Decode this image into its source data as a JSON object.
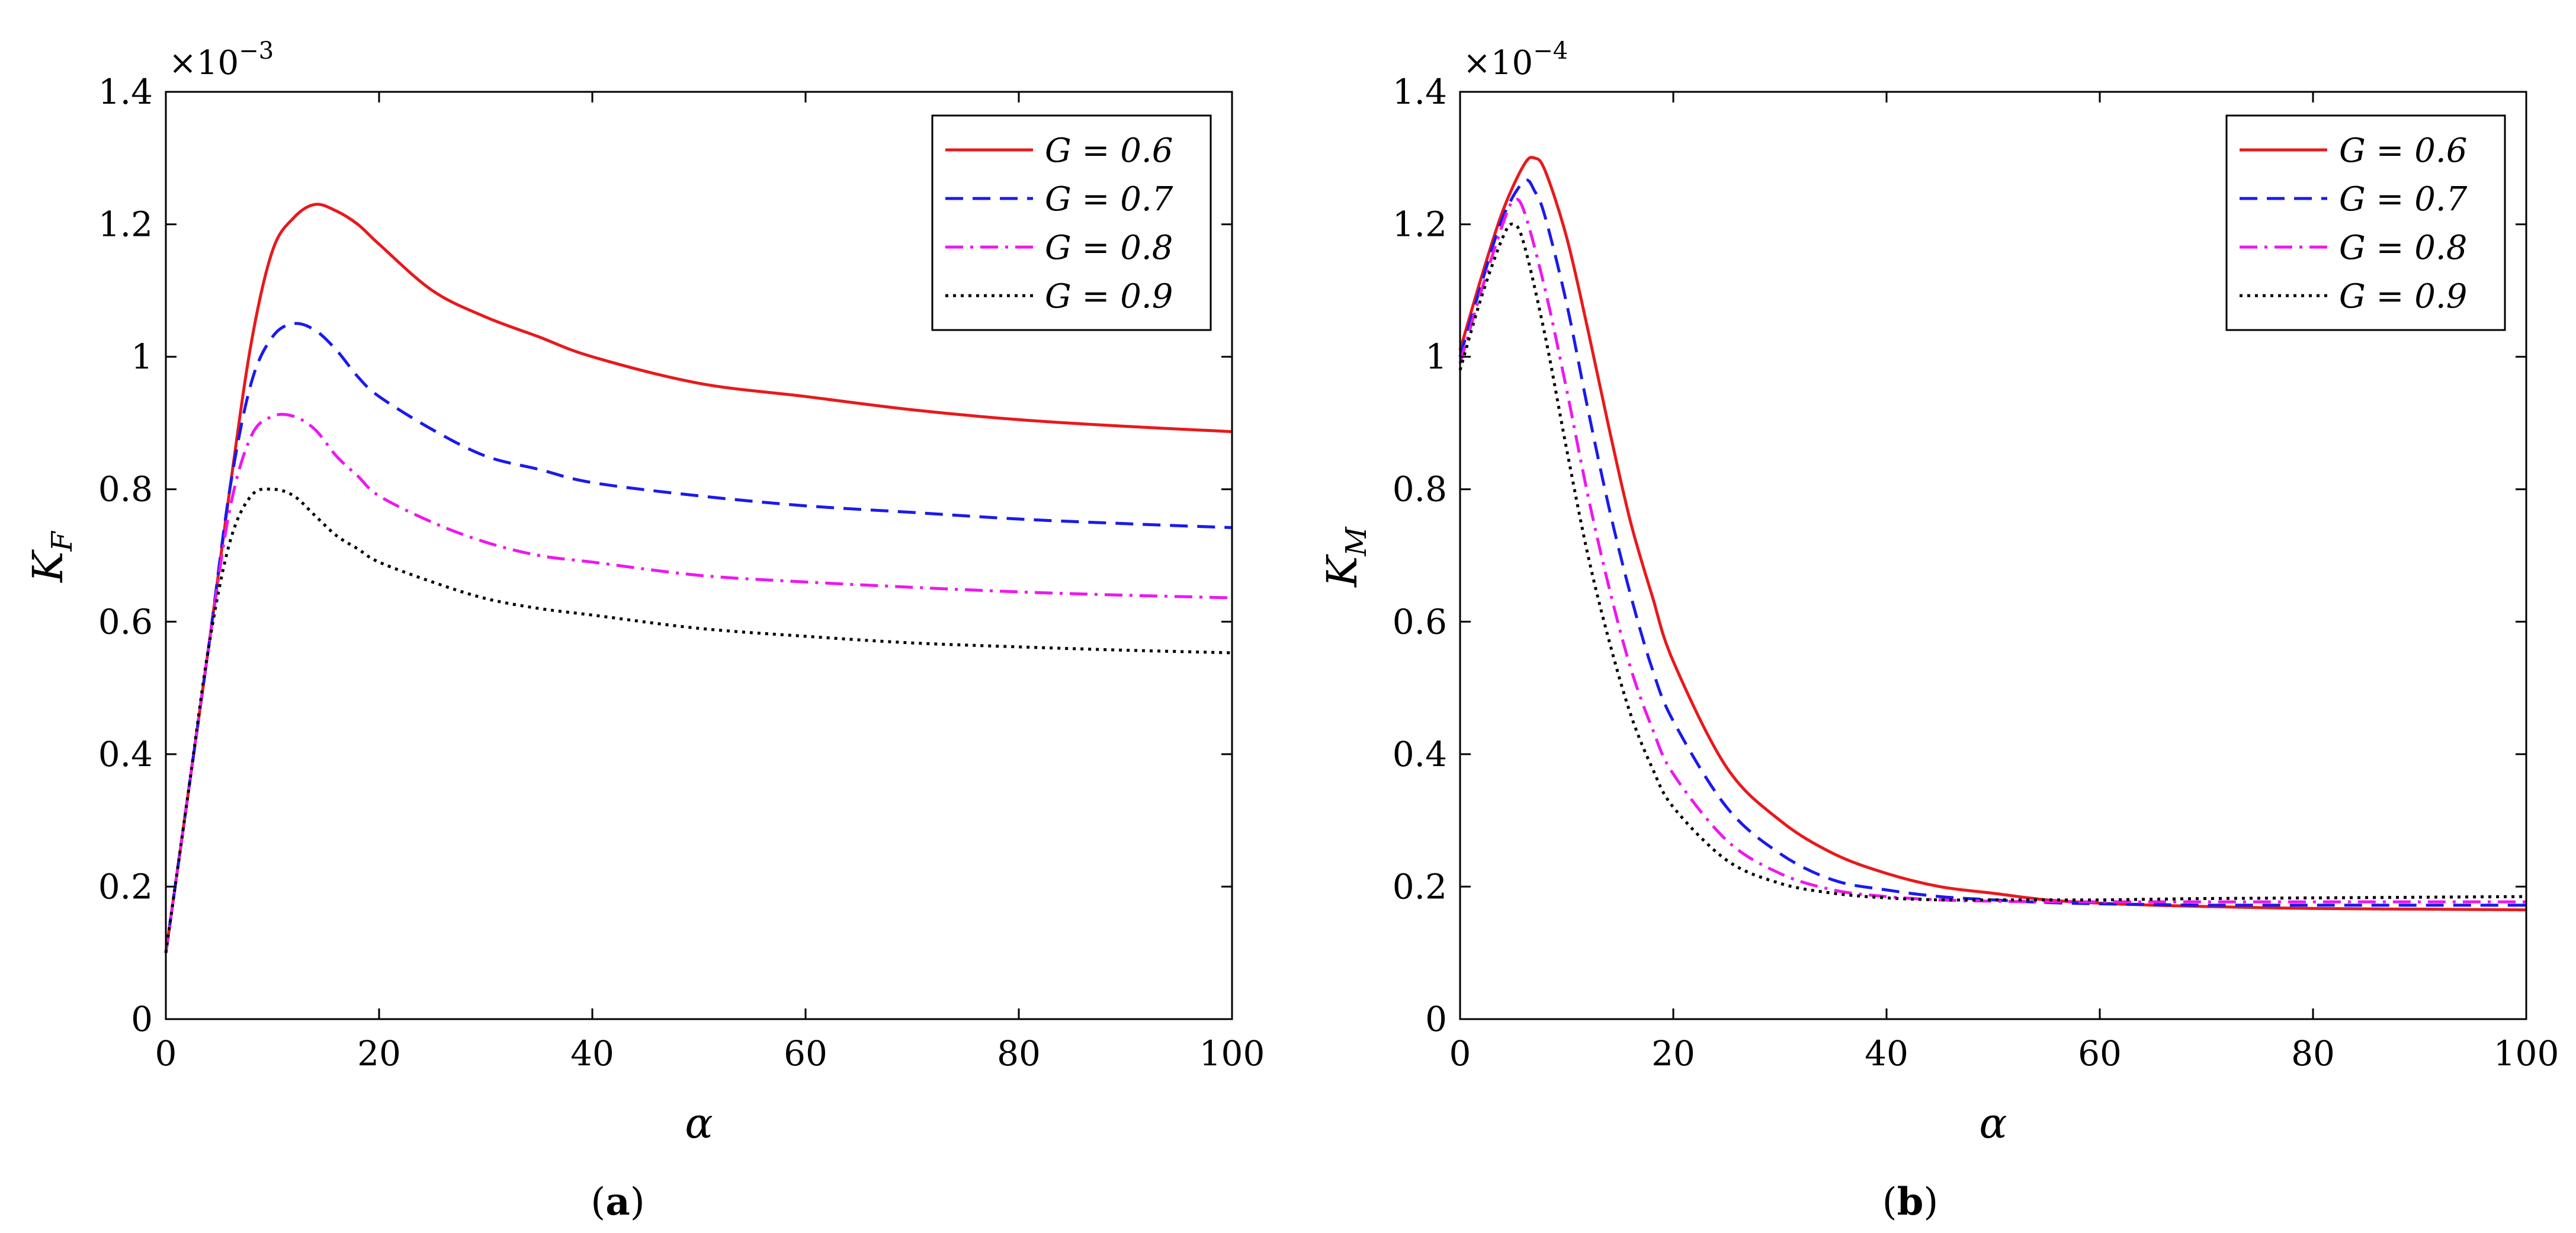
{
  "chart_data": [
    {
      "type": "line",
      "panel_label": "a",
      "caption_open": "(",
      "caption_close": ")",
      "xlabel": "α",
      "ylabel_main": "K",
      "ylabel_sub": "F",
      "exponent_base": "×10",
      "exponent_power": "−3",
      "xlim": [
        0,
        100
      ],
      "ylim": [
        0,
        1.4
      ],
      "xticks": [
        0,
        20,
        40,
        60,
        80,
        100
      ],
      "xtick_labels": [
        "0",
        "20",
        "40",
        "60",
        "80",
        "100"
      ],
      "yticks": [
        0,
        0.2,
        0.4,
        0.6,
        0.8,
        1,
        1.2,
        1.4
      ],
      "ytick_labels": [
        "0",
        "0.2",
        "0.4",
        "0.6",
        "0.8",
        "1",
        "1.2",
        "1.4"
      ],
      "legend_position": "top-right",
      "series": [
        {
          "name": "G = 0.6",
          "label": "G = 0.6",
          "color": "#e8191c",
          "dash": "solid",
          "x": [
            0,
            2,
            4,
            6,
            8,
            10,
            12,
            14,
            16,
            18,
            20,
            25,
            30,
            35,
            40,
            50,
            60,
            70,
            80,
            90,
            100
          ],
          "values": [
            0.1,
            0.33,
            0.56,
            0.8,
            1.02,
            1.16,
            1.21,
            1.23,
            1.22,
            1.2,
            1.17,
            1.1,
            1.06,
            1.03,
            1.0,
            0.96,
            0.94,
            0.92,
            0.905,
            0.895,
            0.887
          ]
        },
        {
          "name": "G = 0.7",
          "label": "G = 0.7",
          "color": "#1a1aee",
          "dash": "dashed",
          "x": [
            0,
            2,
            4,
            6,
            8,
            10,
            12,
            14,
            16,
            18,
            20,
            25,
            30,
            35,
            40,
            50,
            60,
            70,
            80,
            90,
            100
          ],
          "values": [
            0.1,
            0.33,
            0.56,
            0.8,
            0.96,
            1.03,
            1.05,
            1.04,
            1.01,
            0.97,
            0.94,
            0.89,
            0.85,
            0.83,
            0.81,
            0.79,
            0.775,
            0.765,
            0.755,
            0.748,
            0.742
          ]
        },
        {
          "name": "G = 0.8",
          "label": "G = 0.8",
          "color": "#ee17ee",
          "dash": "dashdot",
          "x": [
            0,
            2,
            4,
            6,
            8,
            10,
            12,
            14,
            16,
            18,
            20,
            25,
            30,
            35,
            40,
            50,
            60,
            70,
            80,
            90,
            100
          ],
          "values": [
            0.1,
            0.33,
            0.56,
            0.77,
            0.88,
            0.91,
            0.91,
            0.89,
            0.85,
            0.82,
            0.79,
            0.75,
            0.72,
            0.7,
            0.69,
            0.67,
            0.66,
            0.652,
            0.645,
            0.64,
            0.636
          ]
        },
        {
          "name": "G = 0.9",
          "label": "G = 0.9",
          "color": "#000000",
          "dash": "dotted",
          "x": [
            0,
            2,
            4,
            6,
            8,
            10,
            12,
            14,
            16,
            18,
            20,
            25,
            30,
            35,
            40,
            50,
            60,
            70,
            80,
            90,
            100
          ],
          "values": [
            0.1,
            0.33,
            0.56,
            0.72,
            0.79,
            0.8,
            0.79,
            0.76,
            0.73,
            0.71,
            0.69,
            0.66,
            0.635,
            0.62,
            0.61,
            0.59,
            0.578,
            0.568,
            0.562,
            0.557,
            0.553
          ]
        }
      ]
    },
    {
      "type": "line",
      "panel_label": "b",
      "caption_open": "(",
      "caption_close": ")",
      "xlabel": "α",
      "ylabel_main": "K",
      "ylabel_sub": "M",
      "exponent_base": "×10",
      "exponent_power": "−4",
      "xlim": [
        0,
        100
      ],
      "ylim": [
        0,
        1.4
      ],
      "xticks": [
        0,
        20,
        40,
        60,
        80,
        100
      ],
      "xtick_labels": [
        "0",
        "20",
        "40",
        "60",
        "80",
        "100"
      ],
      "yticks": [
        0,
        0.2,
        0.4,
        0.6,
        0.8,
        1,
        1.2,
        1.4
      ],
      "ytick_labels": [
        "0",
        "0.2",
        "0.4",
        "0.6",
        "0.8",
        "1",
        "1.2",
        "1.4"
      ],
      "legend_position": "top-right",
      "series": [
        {
          "name": "G = 0.6",
          "label": "G = 0.6",
          "color": "#e8191c",
          "dash": "solid",
          "x": [
            0,
            2,
            4,
            6,
            7,
            8,
            10,
            12,
            14,
            16,
            18,
            20,
            25,
            30,
            35,
            40,
            45,
            50,
            55,
            60,
            65,
            70,
            80,
            90,
            100
          ],
          "values": [
            1.01,
            1.12,
            1.22,
            1.29,
            1.3,
            1.28,
            1.18,
            1.04,
            0.89,
            0.75,
            0.64,
            0.54,
            0.38,
            0.3,
            0.25,
            0.22,
            0.2,
            0.19,
            0.18,
            0.175,
            0.172,
            0.17,
            0.167,
            0.166,
            0.165
          ]
        },
        {
          "name": "G = 0.7",
          "label": "G = 0.7",
          "color": "#1a1aee",
          "dash": "dashed",
          "x": [
            0,
            2,
            4,
            6,
            7,
            8,
            10,
            12,
            14,
            16,
            18,
            20,
            25,
            30,
            35,
            40,
            45,
            50,
            55,
            60,
            65,
            70,
            80,
            90,
            100
          ],
          "values": [
            1.0,
            1.11,
            1.21,
            1.265,
            1.25,
            1.21,
            1.08,
            0.92,
            0.77,
            0.64,
            0.53,
            0.45,
            0.32,
            0.25,
            0.21,
            0.195,
            0.185,
            0.18,
            0.176,
            0.174,
            0.173,
            0.172,
            0.172,
            0.172,
            0.172
          ]
        },
        {
          "name": "G = 0.8",
          "label": "G = 0.8",
          "color": "#ee17ee",
          "dash": "dashdot",
          "x": [
            0,
            2,
            4,
            5,
            6,
            8,
            10,
            12,
            14,
            16,
            18,
            20,
            25,
            30,
            35,
            40,
            45,
            50,
            55,
            60,
            65,
            70,
            80,
            90,
            100
          ],
          "values": [
            0.99,
            1.1,
            1.2,
            1.235,
            1.22,
            1.1,
            0.95,
            0.79,
            0.65,
            0.53,
            0.44,
            0.37,
            0.27,
            0.22,
            0.195,
            0.185,
            0.18,
            0.178,
            0.177,
            0.177,
            0.177,
            0.177,
            0.177,
            0.177,
            0.177
          ]
        },
        {
          "name": "G = 0.9",
          "label": "G = 0.9",
          "color": "#000000",
          "dash": "dotted",
          "x": [
            0,
            2,
            4,
            5,
            6,
            8,
            10,
            12,
            14,
            16,
            18,
            20,
            25,
            30,
            35,
            40,
            45,
            50,
            55,
            60,
            65,
            70,
            80,
            90,
            100
          ],
          "values": [
            0.98,
            1.09,
            1.18,
            1.2,
            1.17,
            1.03,
            0.86,
            0.7,
            0.57,
            0.46,
            0.38,
            0.32,
            0.24,
            0.205,
            0.19,
            0.183,
            0.18,
            0.18,
            0.18,
            0.18,
            0.181,
            0.182,
            0.183,
            0.184,
            0.185
          ]
        }
      ]
    }
  ]
}
